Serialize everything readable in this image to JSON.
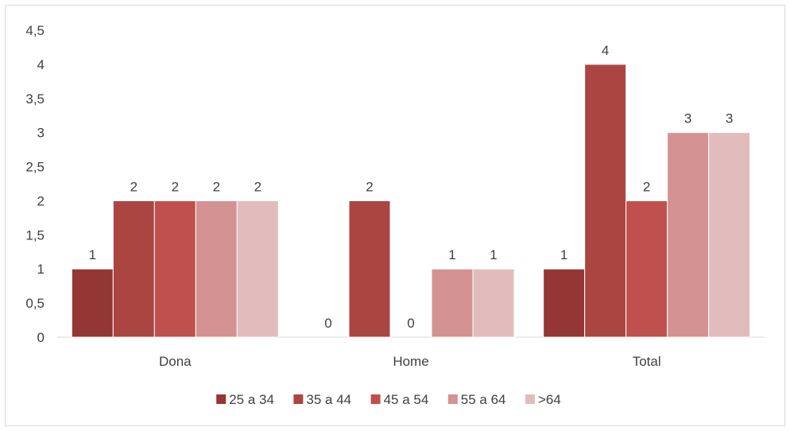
{
  "chart_data": {
    "type": "bar",
    "title": "",
    "xlabel": "",
    "ylabel": "",
    "categories": [
      "Dona",
      "Home",
      "Total"
    ],
    "series": [
      {
        "name": "25 a 34",
        "values": [
          1,
          0,
          1
        ],
        "color": "#943634"
      },
      {
        "name": "35 a 44",
        "values": [
          2,
          2,
          4
        ],
        "color": "#ab4542"
      },
      {
        "name": "45 a 54",
        "values": [
          2,
          0,
          2
        ],
        "color": "#c0504d"
      },
      {
        "name": "55 a 64",
        "values": [
          2,
          1,
          3
        ],
        "color": "#d49292"
      },
      {
        "name": ">64",
        "values": [
          2,
          1,
          3
        ],
        "color": "#e2bcbc"
      }
    ],
    "ylim": [
      0,
      4.5
    ],
    "yticks": [
      "0",
      "0,5",
      "1",
      "1,5",
      "2",
      "2,5",
      "3",
      "3,5",
      "4",
      "4,5"
    ],
    "grid": false,
    "legend_position": "bottom",
    "data_labels": true
  }
}
